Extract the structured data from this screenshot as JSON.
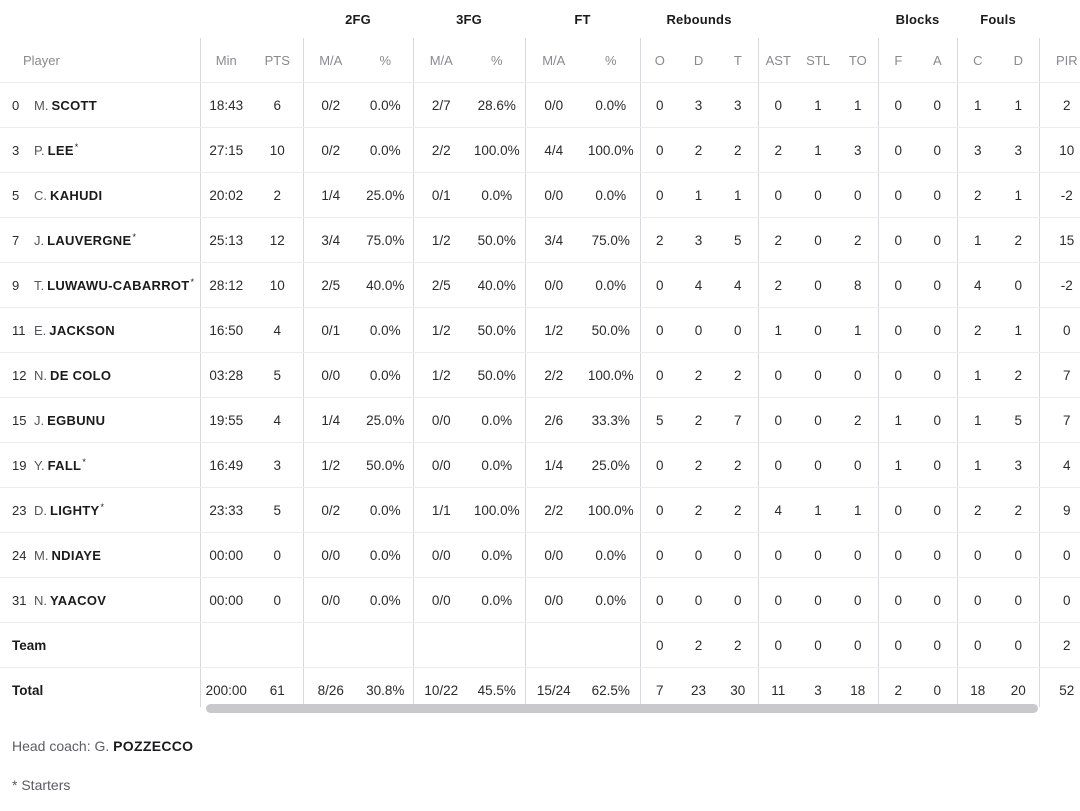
{
  "table": {
    "header": {
      "groups": [
        "",
        "",
        "2FG",
        "3FG",
        "FT",
        "Rebounds",
        "",
        "Blocks",
        "Fouls",
        ""
      ],
      "cols": [
        "Player",
        "Min",
        "PTS",
        "M/A",
        "%",
        "M/A",
        "%",
        "M/A",
        "%",
        "O",
        "D",
        "T",
        "AST",
        "STL",
        "TO",
        "F",
        "A",
        "C",
        "D",
        "PIR"
      ]
    },
    "rows": [
      {
        "no": "0",
        "initial": "M.",
        "last": "SCOTT",
        "starter": false,
        "stats": [
          "18:43",
          "6",
          "0/2",
          "0.0%",
          "2/7",
          "28.6%",
          "0/0",
          "0.0%",
          "0",
          "3",
          "3",
          "0",
          "1",
          "1",
          "0",
          "0",
          "1",
          "1",
          "2"
        ]
      },
      {
        "no": "3",
        "initial": "P.",
        "last": "LEE",
        "starter": true,
        "stats": [
          "27:15",
          "10",
          "0/2",
          "0.0%",
          "2/2",
          "100.0%",
          "4/4",
          "100.0%",
          "0",
          "2",
          "2",
          "2",
          "1",
          "3",
          "0",
          "0",
          "3",
          "3",
          "10"
        ]
      },
      {
        "no": "5",
        "initial": "C.",
        "last": "KAHUDI",
        "starter": false,
        "stats": [
          "20:02",
          "2",
          "1/4",
          "25.0%",
          "0/1",
          "0.0%",
          "0/0",
          "0.0%",
          "0",
          "1",
          "1",
          "0",
          "0",
          "0",
          "0",
          "0",
          "2",
          "1",
          "-2"
        ]
      },
      {
        "no": "7",
        "initial": "J.",
        "last": "LAUVERGNE",
        "starter": true,
        "stats": [
          "25:13",
          "12",
          "3/4",
          "75.0%",
          "1/2",
          "50.0%",
          "3/4",
          "75.0%",
          "2",
          "3",
          "5",
          "2",
          "0",
          "2",
          "0",
          "0",
          "1",
          "2",
          "15"
        ]
      },
      {
        "no": "9",
        "initial": "T.",
        "last": "LUWAWU-CABARROT",
        "starter": true,
        "stats": [
          "28:12",
          "10",
          "2/5",
          "40.0%",
          "2/5",
          "40.0%",
          "0/0",
          "0.0%",
          "0",
          "4",
          "4",
          "2",
          "0",
          "8",
          "0",
          "0",
          "4",
          "0",
          "-2"
        ]
      },
      {
        "no": "11",
        "initial": "E.",
        "last": "JACKSON",
        "starter": false,
        "stats": [
          "16:50",
          "4",
          "0/1",
          "0.0%",
          "1/2",
          "50.0%",
          "1/2",
          "50.0%",
          "0",
          "0",
          "0",
          "1",
          "0",
          "1",
          "0",
          "0",
          "2",
          "1",
          "0"
        ]
      },
      {
        "no": "12",
        "initial": "N.",
        "last": "DE COLO",
        "starter": false,
        "stats": [
          "03:28",
          "5",
          "0/0",
          "0.0%",
          "1/2",
          "50.0%",
          "2/2",
          "100.0%",
          "0",
          "2",
          "2",
          "0",
          "0",
          "0",
          "0",
          "0",
          "1",
          "2",
          "7"
        ]
      },
      {
        "no": "15",
        "initial": "J.",
        "last": "EGBUNU",
        "starter": false,
        "stats": [
          "19:55",
          "4",
          "1/4",
          "25.0%",
          "0/0",
          "0.0%",
          "2/6",
          "33.3%",
          "5",
          "2",
          "7",
          "0",
          "0",
          "2",
          "1",
          "0",
          "1",
          "5",
          "7"
        ]
      },
      {
        "no": "19",
        "initial": "Y.",
        "last": "FALL",
        "starter": true,
        "stats": [
          "16:49",
          "3",
          "1/2",
          "50.0%",
          "0/0",
          "0.0%",
          "1/4",
          "25.0%",
          "0",
          "2",
          "2",
          "0",
          "0",
          "0",
          "1",
          "0",
          "1",
          "3",
          "4"
        ]
      },
      {
        "no": "23",
        "initial": "D.",
        "last": "LIGHTY",
        "starter": true,
        "stats": [
          "23:33",
          "5",
          "0/2",
          "0.0%",
          "1/1",
          "100.0%",
          "2/2",
          "100.0%",
          "0",
          "2",
          "2",
          "4",
          "1",
          "1",
          "0",
          "0",
          "2",
          "2",
          "9"
        ]
      },
      {
        "no": "24",
        "initial": "M.",
        "last": "NDIAYE",
        "starter": false,
        "stats": [
          "00:00",
          "0",
          "0/0",
          "0.0%",
          "0/0",
          "0.0%",
          "0/0",
          "0.0%",
          "0",
          "0",
          "0",
          "0",
          "0",
          "0",
          "0",
          "0",
          "0",
          "0",
          "0"
        ]
      },
      {
        "no": "31",
        "initial": "N.",
        "last": "YAACOV",
        "starter": false,
        "stats": [
          "00:00",
          "0",
          "0/0",
          "0.0%",
          "0/0",
          "0.0%",
          "0/0",
          "0.0%",
          "0",
          "0",
          "0",
          "0",
          "0",
          "0",
          "0",
          "0",
          "0",
          "0",
          "0"
        ]
      }
    ],
    "team_row": {
      "label": "Team",
      "stats": [
        "",
        "",
        "",
        "",
        "",
        "",
        "",
        "",
        "0",
        "2",
        "2",
        "0",
        "0",
        "0",
        "0",
        "0",
        "0",
        "0",
        "2"
      ]
    },
    "total_row": {
      "label": "Total",
      "stats": [
        "200:00",
        "61",
        "8/26",
        "30.8%",
        "10/22",
        "45.5%",
        "15/24",
        "62.5%",
        "7",
        "23",
        "30",
        "11",
        "3",
        "18",
        "2",
        "0",
        "18",
        "20",
        "52"
      ]
    }
  },
  "footer": {
    "head_coach_prefix": "Head coach: G.",
    "head_coach_name": "POZZECCO",
    "starters_note": "* Starters"
  },
  "colors": {
    "text_dark": "#1b1b1d",
    "text_gray": "#8a8a8f",
    "column_line": "#d9d9dd",
    "row_line": "#ededf0",
    "scrollbar": "#c9c9cb"
  }
}
